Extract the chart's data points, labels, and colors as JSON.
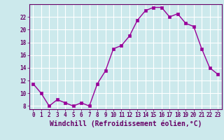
{
  "x": [
    0,
    1,
    2,
    3,
    4,
    5,
    6,
    7,
    8,
    9,
    10,
    11,
    12,
    13,
    14,
    15,
    16,
    17,
    18,
    19,
    20,
    21,
    22,
    23
  ],
  "y": [
    11.5,
    10.0,
    8.0,
    9.0,
    8.5,
    8.0,
    8.5,
    8.0,
    11.5,
    13.5,
    17.0,
    17.5,
    19.0,
    21.5,
    23.0,
    23.5,
    23.5,
    22.0,
    22.5,
    21.0,
    20.5,
    17.0,
    14.0,
    13.0
  ],
  "line_color": "#990099",
  "marker": "s",
  "marker_size": 2.5,
  "bg_color": "#cce9ec",
  "grid_color": "#ffffff",
  "xlabel": "Windchill (Refroidissement éolien,°C)",
  "xlabel_color": "#660066",
  "tick_color": "#660066",
  "ylim": [
    7.5,
    24.0
  ],
  "xlim": [
    -0.5,
    23.5
  ],
  "yticks": [
    8,
    10,
    12,
    14,
    16,
    18,
    20,
    22
  ],
  "xticks": [
    0,
    1,
    2,
    3,
    4,
    5,
    6,
    7,
    8,
    9,
    10,
    11,
    12,
    13,
    14,
    15,
    16,
    17,
    18,
    19,
    20,
    21,
    22,
    23
  ],
  "tick_fontsize": 5.5,
  "xlabel_fontsize": 7.0,
  "line_width": 1.0
}
